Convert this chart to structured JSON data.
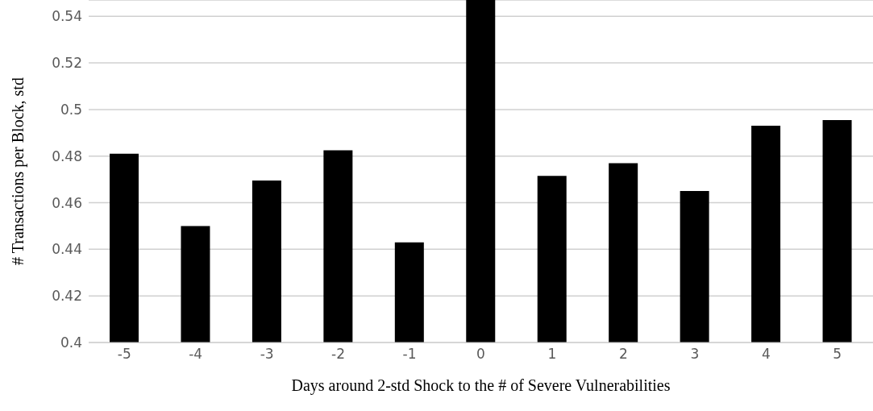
{
  "chart_data": {
    "type": "bar",
    "xlabel": "Days around 2-std Shock to the # of Severe Vulnerabilities",
    "ylabel": "# Transactions per Block, std",
    "categories": [
      "-5",
      "-4",
      "-3",
      "-2",
      "-1",
      "0",
      "1",
      "2",
      "3",
      "4",
      "5"
    ],
    "values": [
      0.481,
      0.45,
      0.4695,
      0.4825,
      0.443,
      0.547,
      0.4715,
      0.477,
      0.465,
      0.493,
      0.4955
    ],
    "color": "#000000",
    "ylim": [
      0.4,
      0.547
    ],
    "yticks": [
      0.4,
      0.42,
      0.44,
      0.46,
      0.48,
      0.5,
      0.52,
      0.54
    ],
    "grid": "y"
  }
}
